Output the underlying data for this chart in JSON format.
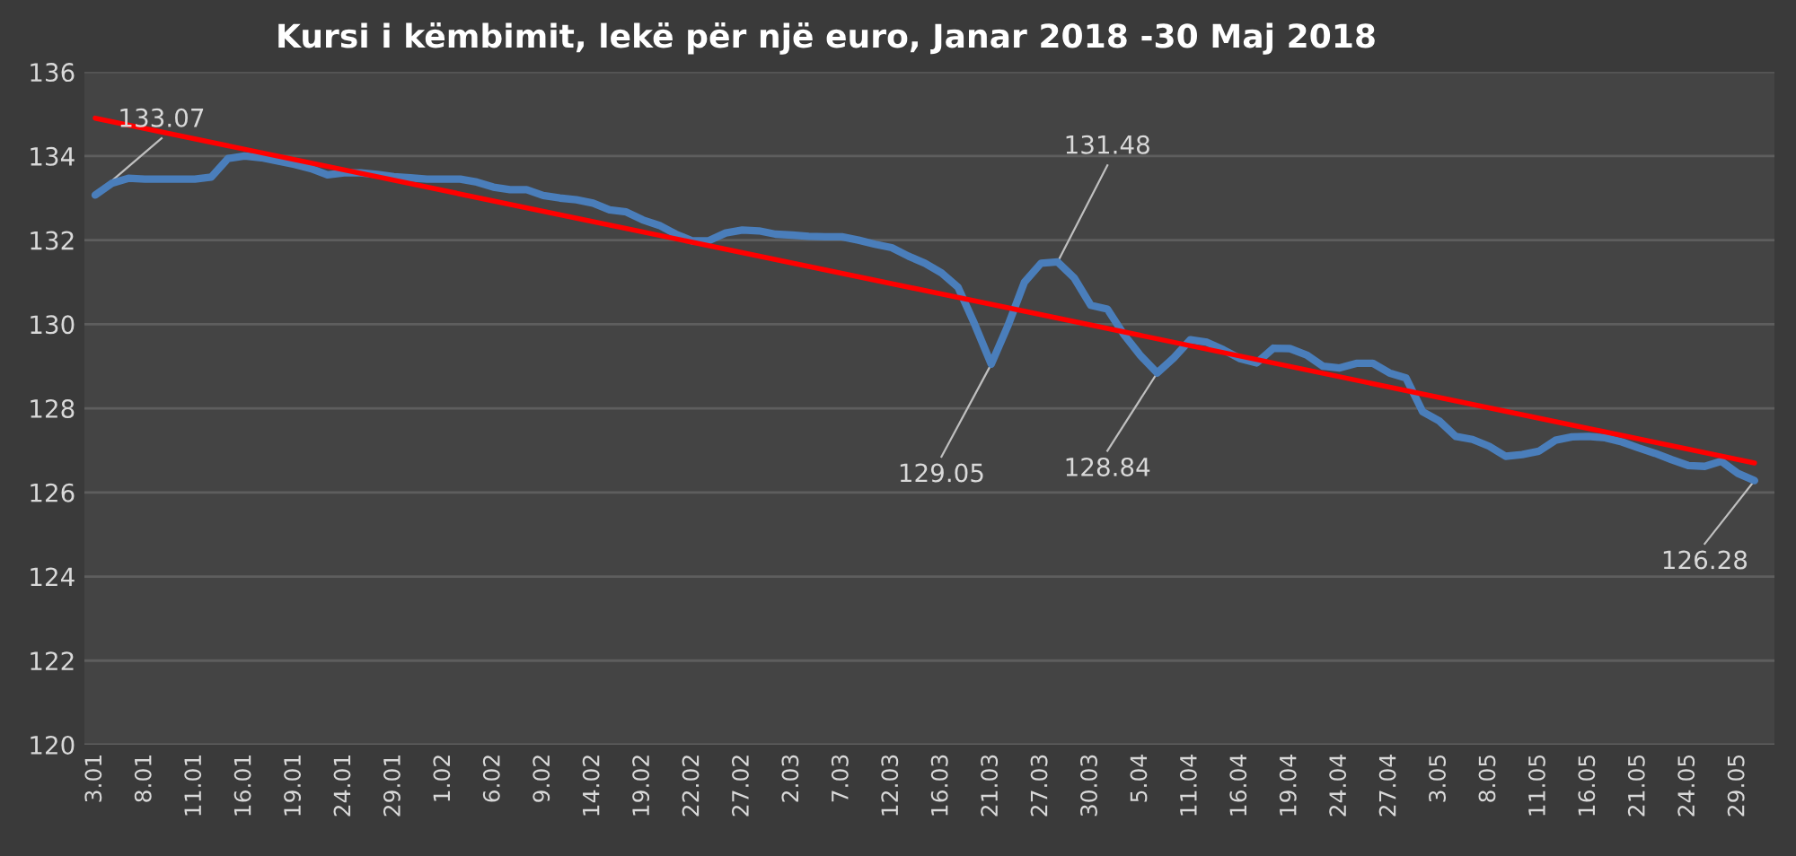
{
  "chart_data": {
    "type": "line",
    "title": "Kursi i këmbimit, lekë për një euro, Janar 2018 -30 Maj 2018",
    "categories": [
      "3.01",
      null,
      null,
      "8.01",
      null,
      null,
      "11.01",
      null,
      null,
      "16.01",
      null,
      null,
      "19.01",
      null,
      null,
      "24.01",
      null,
      null,
      "29.01",
      null,
      null,
      "1.02",
      null,
      null,
      "6.02",
      null,
      null,
      "9.02",
      null,
      null,
      "14.02",
      null,
      null,
      "19.02",
      null,
      null,
      "22.02",
      null,
      null,
      "27.02",
      null,
      null,
      "2.03",
      null,
      null,
      "7.03",
      null,
      null,
      "12.03",
      null,
      null,
      "16.03",
      null,
      null,
      "21.03",
      null,
      null,
      "27.03",
      null,
      null,
      "30.03",
      null,
      null,
      "5.04",
      null,
      null,
      "11.04",
      null,
      null,
      "16.04",
      null,
      null,
      "19.04",
      null,
      null,
      "24.04",
      null,
      null,
      "27.04",
      null,
      null,
      "3.05",
      null,
      null,
      "8.05",
      null,
      null,
      "11.05",
      null,
      null,
      "16.05",
      null,
      null,
      "21.05",
      null,
      null,
      "24.05",
      null,
      null,
      "29.05",
      null
    ],
    "series": [
      {
        "color": "#4a7ebb",
        "values": [
          133.07,
          133.35,
          133.47,
          133.45,
          133.45,
          133.45,
          133.45,
          133.5,
          133.94,
          134.0,
          133.96,
          133.88,
          133.8,
          133.7,
          133.55,
          133.6,
          133.6,
          133.56,
          133.51,
          133.48,
          133.45,
          133.45,
          133.45,
          133.38,
          133.26,
          133.2,
          133.2,
          133.06,
          133.0,
          132.96,
          132.88,
          132.72,
          132.67,
          132.48,
          132.35,
          132.14,
          131.98,
          131.99,
          132.17,
          132.24,
          132.22,
          132.14,
          132.12,
          132.09,
          132.08,
          132.08,
          132.0,
          131.9,
          131.82,
          131.62,
          131.45,
          131.22,
          130.88,
          130.0,
          129.05,
          129.96,
          131.0,
          131.45,
          131.48,
          131.1,
          130.45,
          130.36,
          129.75,
          129.25,
          128.84,
          129.2,
          129.63,
          129.57,
          129.39,
          129.18,
          129.08,
          129.43,
          129.42,
          129.27,
          129.0,
          128.96,
          129.07,
          129.07,
          128.84,
          128.72,
          127.92,
          127.7,
          127.33,
          127.26,
          127.1,
          126.86,
          126.9,
          126.98,
          127.24,
          127.32,
          127.33,
          127.3,
          127.2,
          127.06,
          126.93,
          126.78,
          126.64,
          126.62,
          126.74,
          126.45,
          126.28
        ],
        "value_labels": [
          "133.07",
          null,
          null,
          null,
          null,
          null,
          null,
          null,
          null,
          null,
          null,
          null,
          null,
          null,
          null,
          null,
          null,
          null,
          null,
          null,
          null,
          null,
          null,
          null,
          null,
          null,
          null,
          null,
          null,
          null,
          null,
          null,
          null,
          null,
          null,
          null,
          null,
          null,
          null,
          null,
          null,
          null,
          null,
          null,
          null,
          null,
          null,
          null,
          null,
          null,
          null,
          null,
          null,
          null,
          "129.05",
          null,
          null,
          null,
          "131.48",
          null,
          null,
          null,
          null,
          null,
          "128.84",
          null,
          null,
          null,
          null,
          null,
          null,
          null,
          null,
          null,
          null,
          null,
          null,
          null,
          null,
          null,
          null,
          null,
          null,
          null,
          null,
          null,
          null,
          null,
          null,
          null,
          null,
          null,
          null,
          null,
          null,
          null,
          null,
          null,
          null,
          null,
          "126.28"
        ]
      },
      {
        "color": "#ff0000",
        "values": [
          134.9,
          null,
          null,
          null,
          null,
          null,
          null,
          null,
          null,
          null,
          null,
          null,
          null,
          null,
          null,
          null,
          null,
          null,
          null,
          null,
          null,
          null,
          null,
          null,
          null,
          null,
          null,
          null,
          null,
          null,
          null,
          null,
          null,
          null,
          null,
          null,
          null,
          null,
          null,
          null,
          null,
          null,
          null,
          null,
          null,
          null,
          null,
          null,
          null,
          null,
          null,
          null,
          null,
          null,
          null,
          null,
          null,
          null,
          null,
          null,
          null,
          null,
          null,
          null,
          null,
          null,
          null,
          null,
          null,
          null,
          null,
          null,
          null,
          null,
          null,
          null,
          null,
          null,
          null,
          null,
          null,
          null,
          null,
          null,
          null,
          null,
          null,
          null,
          null,
          null,
          null,
          null,
          null,
          null,
          null,
          null,
          null,
          null,
          null,
          null,
          126.7
        ]
      }
    ],
    "ylim": [
      120,
      136
    ],
    "yticks": [
      120,
      122,
      124,
      126,
      128,
      130,
      132,
      134,
      136
    ],
    "grid": "y",
    "legend": false
  }
}
